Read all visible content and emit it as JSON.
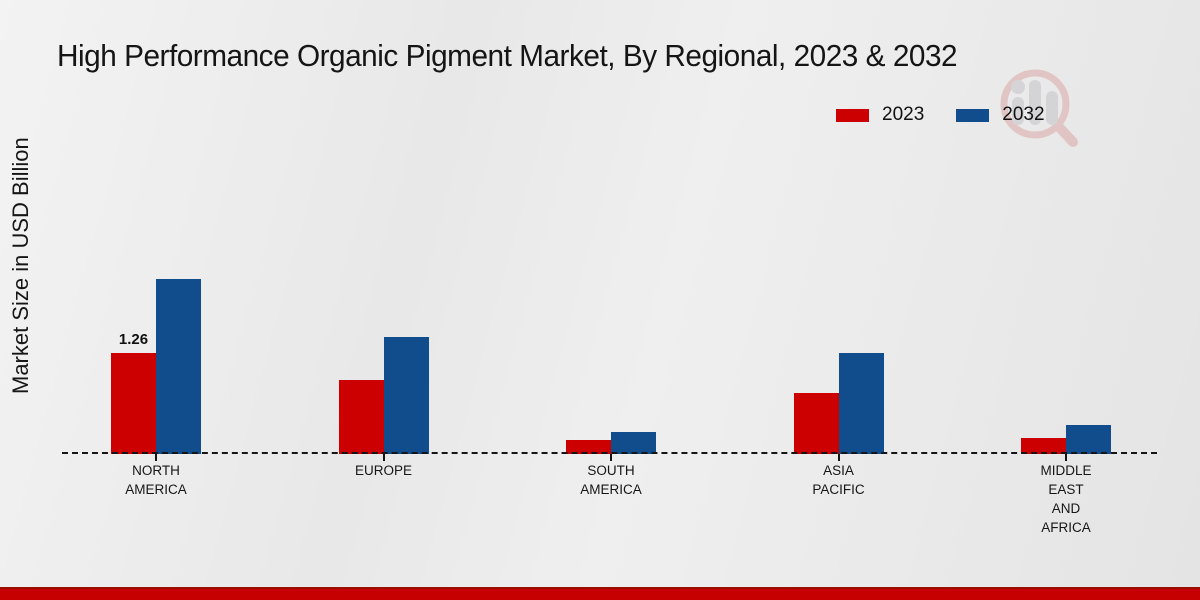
{
  "title": "High Performance Organic Pigment Market, By Regional, 2023 & 2032",
  "y_axis_label": "Market Size in USD Billion",
  "legend": {
    "items": [
      {
        "label": "2023",
        "color": "#cc0000"
      },
      {
        "label": "2032",
        "color": "#114c8c"
      }
    ]
  },
  "watermark": {
    "name": "market-research-future-logo"
  },
  "footer": {
    "bar_color": "#c60000"
  },
  "colors": {
    "series_2023": "#cc0000",
    "series_2032": "#114c8c",
    "axis": "#151515"
  },
  "chart_data": {
    "type": "bar",
    "title": "High Performance Organic Pigment Market, By Regional, 2023 & 2032",
    "xlabel": "",
    "ylabel": "Market Size in USD Billion",
    "categories": [
      "NORTH AMERICA",
      "EUROPE",
      "SOUTH AMERICA",
      "ASIA PACIFIC",
      "MIDDLE EAST AND AFRICA"
    ],
    "category_display_lines": [
      "NORTH\nAMERICA",
      "EUROPE",
      "SOUTH\nAMERICA",
      "ASIA\nPACIFIC",
      "MIDDLE\nEAST\nAND\nAFRICA"
    ],
    "series": [
      {
        "name": "2023",
        "color": "#cc0000",
        "values": [
          1.26,
          0.92,
          0.17,
          0.76,
          0.2
        ]
      },
      {
        "name": "2032",
        "color": "#114c8c",
        "values": [
          2.17,
          1.45,
          0.27,
          1.25,
          0.36
        ]
      }
    ],
    "data_labels": [
      {
        "series_index": 0,
        "category_index": 0,
        "text": "1.26"
      }
    ],
    "ylim": [
      0,
      2.4
    ],
    "grid": false,
    "legend_position": "top-right",
    "baseline_style": "dashed",
    "y_axis_ticks_visible": false
  }
}
